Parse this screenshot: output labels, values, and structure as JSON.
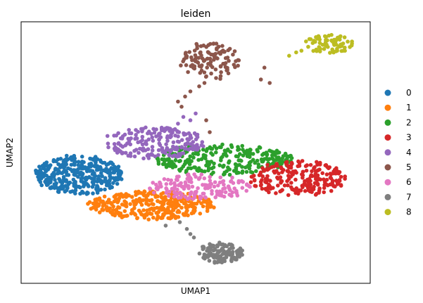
{
  "chart_data": {
    "type": "scatter",
    "title": "leiden",
    "xlabel": "UMAP1",
    "ylabel": "UMAP2",
    "xticks": [],
    "yticks": [],
    "grid": false,
    "legend_position": "right",
    "series": [
      {
        "name": "0",
        "color": "#1f77b4",
        "cx": 3.0,
        "cy": 5.6,
        "rx": 2.5,
        "ry": 1.15,
        "count": 360,
        "extra": []
      },
      {
        "name": "1",
        "color": "#ff7f0e",
        "cx": 7.1,
        "cy": 3.8,
        "rx": 3.6,
        "ry": 0.85,
        "count": 330,
        "extra": []
      },
      {
        "name": "2",
        "color": "#2ca02c",
        "cx": 11.2,
        "cy": 6.5,
        "rx": 3.9,
        "ry": 0.9,
        "count": 260,
        "extra": []
      },
      {
        "name": "3",
        "color": "#d62728",
        "cx": 15.4,
        "cy": 5.4,
        "rx": 2.8,
        "ry": 1.05,
        "count": 220,
        "extra": []
      },
      {
        "name": "4",
        "color": "#9467bd",
        "cx": 7.2,
        "cy": 7.5,
        "rx": 2.9,
        "ry": 0.95,
        "count": 190,
        "extra": [
          [
            8.6,
            8.6
          ],
          [
            8.9,
            9.0
          ],
          [
            9.3,
            8.8
          ],
          [
            9.6,
            9.2
          ]
        ]
      },
      {
        "name": "5",
        "color": "#8c564b",
        "cx": 10.4,
        "cy": 12.3,
        "rx": 1.7,
        "ry": 1.1,
        "count": 110,
        "extra": [
          [
            9.8,
            10.8
          ],
          [
            9.3,
            10.5
          ],
          [
            10.1,
            11.0
          ],
          [
            9.0,
            10.2
          ],
          [
            8.6,
            9.9
          ],
          [
            8.8,
            9.6
          ],
          [
            10.2,
            8.8
          ],
          [
            10.4,
            8.1
          ],
          [
            13.5,
            11.9
          ],
          [
            13.3,
            11.2
          ],
          [
            13.8,
            11.0
          ]
        ]
      },
      {
        "name": "6",
        "color": "#e377c2",
        "cx": 9.8,
        "cy": 4.9,
        "rx": 3.0,
        "ry": 0.75,
        "count": 150,
        "extra": []
      },
      {
        "name": "7",
        "color": "#7f7f7f",
        "cx": 11.0,
        "cy": 1.0,
        "rx": 1.3,
        "ry": 0.6,
        "count": 130,
        "extra": [
          [
            7.9,
            2.6
          ],
          [
            8.7,
            2.8
          ],
          [
            9.1,
            2.4
          ],
          [
            9.3,
            2.1
          ],
          [
            9.5,
            1.9
          ]
        ]
      },
      {
        "name": "8",
        "color": "#bcbd22",
        "cx": 17.1,
        "cy": 13.3,
        "rx": 1.4,
        "ry": 0.55,
        "count": 75,
        "extra": [
          [
            14.9,
            12.6
          ],
          [
            15.3,
            12.8
          ],
          [
            15.6,
            12.9
          ]
        ]
      }
    ],
    "xlim": [
      -0.3,
      19.5
    ],
    "ylim": [
      -0.8,
      14.6
    ]
  }
}
